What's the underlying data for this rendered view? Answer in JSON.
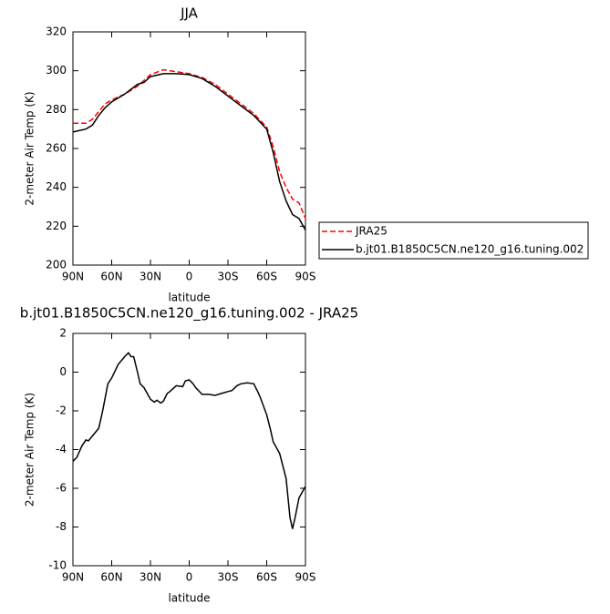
{
  "chart_data": [
    {
      "type": "line",
      "title": "JJA",
      "xlabel": "latitude",
      "ylabel": "2-meter Air Temp (K)",
      "x": [
        90,
        80,
        75,
        70,
        65,
        60,
        50,
        40,
        35,
        30,
        20,
        10,
        0,
        -10,
        -20,
        -30,
        -40,
        -50,
        -60,
        -65,
        -70,
        -75,
        -80,
        -85,
        -90
      ],
      "xlim": [
        90,
        -90
      ],
      "xticks": [
        {
          "value": 90,
          "label": "90N"
        },
        {
          "value": 60,
          "label": "60N"
        },
        {
          "value": 30,
          "label": "30N"
        },
        0,
        {
          "value": -30,
          "label": "30S"
        },
        {
          "value": -60,
          "label": "60S"
        },
        {
          "value": -90,
          "label": "90S"
        }
      ],
      "ylim": [
        200,
        320
      ],
      "yticks": [
        200,
        220,
        240,
        260,
        280,
        300,
        320
      ],
      "series": [
        {
          "name": "JRA25",
          "color": "#ff0000",
          "dash": true,
          "values": [
            273,
            273,
            275,
            279,
            283,
            285,
            288,
            292,
            295,
            298,
            300.5,
            299.5,
            298.5,
            296.5,
            293,
            288,
            283,
            278,
            271,
            261,
            248,
            240,
            234,
            232,
            224
          ]
        },
        {
          "name": "b.jt01.B1850C5CN.ne120_g16.tuning.002",
          "color": "#000000",
          "dash": false,
          "values": [
            268.5,
            270,
            272,
            277,
            281,
            284,
            288,
            293,
            294,
            297,
            298.5,
            298.5,
            298,
            296,
            292,
            287,
            282,
            277,
            270,
            258,
            243,
            233,
            226,
            224,
            218
          ]
        }
      ]
    },
    {
      "type": "line",
      "title": "b.jt01.B1850C5CN.ne120_g16.tuning.002 - JRA25",
      "xlabel": "latitude",
      "ylabel": "2-meter Air Temp (K)",
      "x": [
        90,
        87,
        83,
        80,
        78,
        75,
        70,
        67,
        63,
        60,
        55,
        50,
        47,
        45,
        43,
        40,
        38,
        35,
        30,
        27,
        25,
        22,
        20,
        17,
        15,
        10,
        5,
        3,
        0,
        -3,
        -5,
        -10,
        -15,
        -20,
        -25,
        -30,
        -33,
        -37,
        -40,
        -45,
        -50,
        -53,
        -55,
        -60,
        -63,
        -65,
        -70,
        -75,
        -78,
        -80,
        -82,
        -85,
        -90
      ],
      "xlim": [
        90,
        -90
      ],
      "xticks": [
        {
          "value": 90,
          "label": "90N"
        },
        {
          "value": 60,
          "label": "60N"
        },
        {
          "value": 30,
          "label": "30N"
        },
        0,
        {
          "value": -30,
          "label": "30S"
        },
        {
          "value": -60,
          "label": "60S"
        },
        {
          "value": -90,
          "label": "90S"
        }
      ],
      "ylim": [
        -10,
        2
      ],
      "yticks": [
        -10,
        -8,
        -6,
        -4,
        -2,
        0,
        2
      ],
      "series": [
        {
          "color": "#000000",
          "dash": false,
          "values": [
            -4.6,
            -4.4,
            -3.8,
            -3.5,
            -3.55,
            -3.3,
            -2.9,
            -2.0,
            -0.6,
            -0.3,
            0.4,
            0.8,
            1.0,
            0.8,
            0.8,
            0,
            -0.6,
            -0.8,
            -1.4,
            -1.55,
            -1.45,
            -1.6,
            -1.5,
            -1.1,
            -1.0,
            -0.7,
            -0.75,
            -0.45,
            -0.4,
            -0.6,
            -0.8,
            -1.15,
            -1.15,
            -1.2,
            -1.1,
            -1.0,
            -0.95,
            -0.7,
            -0.6,
            -0.55,
            -0.6,
            -1.0,
            -1.3,
            -2.2,
            -3.0,
            -3.6,
            -4.2,
            -5.5,
            -7.5,
            -8.1,
            -7.5,
            -6.5,
            -5.9
          ]
        }
      ]
    }
  ]
}
